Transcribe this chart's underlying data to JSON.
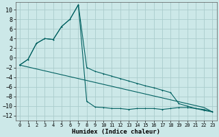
{
  "xlabel": "Humidex (Indice chaleur)",
  "background_color": "#cce8e8",
  "grid_color": "#aacccc",
  "line_color": "#006060",
  "xlim": [
    -0.5,
    23.5
  ],
  "ylim": [
    -13,
    11.5
  ],
  "xticks": [
    0,
    1,
    2,
    3,
    4,
    5,
    6,
    7,
    8,
    9,
    10,
    11,
    12,
    13,
    14,
    15,
    16,
    17,
    18,
    19,
    20,
    21,
    22,
    23
  ],
  "yticks": [
    -12,
    -10,
    -8,
    -6,
    -4,
    -2,
    0,
    2,
    4,
    6,
    8,
    10
  ],
  "line1_x": [
    0,
    1,
    2,
    3,
    4,
    5,
    6,
    7,
    8,
    9,
    10,
    11,
    12,
    13,
    14,
    15,
    16,
    17,
    18,
    19,
    20,
    21,
    22,
    23
  ],
  "line1_y": [
    -1.5,
    -0.3,
    3.0,
    4.0,
    3.8,
    6.5,
    8.0,
    11.0,
    -9.0,
    -10.2,
    -10.3,
    -10.5,
    -10.5,
    -10.7,
    -10.5,
    -10.5,
    -10.5,
    -10.7,
    -10.5,
    -10.3,
    -10.3,
    -10.5,
    -10.7,
    -11.2
  ],
  "line2_x": [
    0,
    1,
    2,
    3,
    4,
    5,
    6,
    7,
    8,
    9,
    10,
    11,
    12,
    13,
    14,
    15,
    16,
    17,
    18,
    19,
    20,
    21,
    22,
    23
  ],
  "line2_y": [
    -1.5,
    -0.3,
    3.0,
    4.0,
    3.8,
    6.5,
    8.0,
    11.0,
    -2.0,
    -2.8,
    -3.3,
    -3.8,
    -4.3,
    -4.8,
    -5.3,
    -5.8,
    -6.2,
    -6.7,
    -7.2,
    -9.5,
    -10.0,
    -10.5,
    -10.9,
    -11.2
  ],
  "line3_x": [
    0,
    1,
    2,
    3,
    4,
    5,
    6,
    7,
    8,
    9,
    10,
    11,
    12,
    13,
    14,
    15,
    16,
    17,
    18,
    19,
    20,
    21,
    22,
    23
  ],
  "line3_y": [
    -1.5,
    -1.9,
    -2.3,
    -2.7,
    -3.1,
    -3.5,
    -3.9,
    -4.3,
    -4.7,
    -5.1,
    -5.5,
    -5.9,
    -6.3,
    -6.7,
    -7.1,
    -7.5,
    -7.9,
    -8.3,
    -8.7,
    -9.1,
    -9.5,
    -9.9,
    -10.3,
    -11.2
  ]
}
